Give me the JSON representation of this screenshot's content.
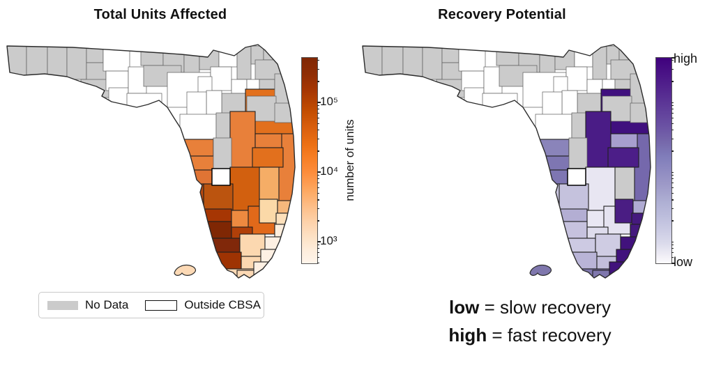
{
  "figure": {
    "background": "#ffffff"
  },
  "panels": {
    "left": {
      "title": "Total Units Affected",
      "colorbar": {
        "label": "number of units",
        "scale": "log",
        "tick_labels": [
          "10⁵",
          "10⁴",
          "10³"
        ],
        "colormap_top": "#7f2704",
        "colormap_bottom": "#fff5eb"
      }
    },
    "right": {
      "title": "Recovery Potential",
      "colorbar": {
        "top_label": "high",
        "bottom_label": "low",
        "colormap_top": "#3f007d",
        "colormap_bottom": "#fcfbfd"
      }
    }
  },
  "legend": {
    "items": [
      {
        "label": "No Data",
        "swatch_color": "#cbcbcb",
        "swatch_border": "none"
      },
      {
        "label": "Outside CBSA",
        "swatch_color": "#ffffff",
        "swatch_border": "#111111"
      }
    ]
  },
  "caption": {
    "line1": {
      "term": "low",
      "rest": " = slow recovery"
    },
    "line2": {
      "term": "high",
      "rest": " = fast recovery"
    }
  },
  "chart_data": {
    "type": "heatmap",
    "subtype": "choropleth",
    "geography": "Florida counties",
    "maps": [
      {
        "title": "Total Units Affected",
        "colormap": "Oranges (darker = more units)",
        "scale": "log",
        "colorbar_label": "number of units",
        "colorbar_ticks": [
          "10⁵",
          "10⁴",
          "10³"
        ],
        "value_key": "units"
      },
      {
        "title": "Recovery Potential",
        "colormap": "Purples (darker = higher potential)",
        "scale": "low to high",
        "colorbar_ticks": [
          "high",
          "low"
        ],
        "value_key": "recovery"
      }
    ],
    "special_values": {
      "no_data": "#cbcbcb",
      "outside_cbsa": "#ffffff"
    },
    "regions": [
      {
        "id": "escambia",
        "units": "#cbcbcb",
        "recovery": "#cbcbcb"
      },
      {
        "id": "santarosa",
        "units": "#cbcbcb",
        "recovery": "#cbcbcb"
      },
      {
        "id": "okaloosa",
        "units": "#cbcbcb",
        "recovery": "#cbcbcb"
      },
      {
        "id": "walton",
        "units": "#cbcbcb",
        "recovery": "#cbcbcb"
      },
      {
        "id": "holmes",
        "units": "#cbcbcb",
        "recovery": "#cbcbcb"
      },
      {
        "id": "washington",
        "units": "#cbcbcb",
        "recovery": "#cbcbcb"
      },
      {
        "id": "bay",
        "units": "#cbcbcb",
        "recovery": "#cbcbcb"
      },
      {
        "id": "jackson",
        "units": "#ffffff",
        "recovery": "#ffffff"
      },
      {
        "id": "calhoun",
        "units": "#ffffff",
        "recovery": "#ffffff"
      },
      {
        "id": "gulf",
        "units": "#ffffff",
        "recovery": "#ffffff"
      },
      {
        "id": "liberty",
        "units": "#ffffff",
        "recovery": "#ffffff"
      },
      {
        "id": "franklin",
        "units": "#ffffff",
        "recovery": "#ffffff"
      },
      {
        "id": "gadsden",
        "units": "#cbcbcb",
        "recovery": "#cbcbcb"
      },
      {
        "id": "leon",
        "units": "#cbcbcb",
        "recovery": "#cbcbcb"
      },
      {
        "id": "wakulla",
        "units": "#cbcbcb",
        "recovery": "#cbcbcb"
      },
      {
        "id": "jefferson",
        "units": "#cbcbcb",
        "recovery": "#cbcbcb"
      },
      {
        "id": "madison",
        "units": "#cbcbcb",
        "recovery": "#cbcbcb"
      },
      {
        "id": "taylor",
        "units": "#ffffff",
        "recovery": "#ffffff"
      },
      {
        "id": "hamilton",
        "units": "#ffffff",
        "recovery": "#ffffff"
      },
      {
        "id": "suwannee",
        "units": "#ffffff",
        "recovery": "#ffffff"
      },
      {
        "id": "lafayette",
        "units": "#ffffff",
        "recovery": "#ffffff"
      },
      {
        "id": "columbia",
        "units": "#cbcbcb",
        "recovery": "#cbcbcb"
      },
      {
        "id": "baker",
        "units": "#cbcbcb",
        "recovery": "#cbcbcb"
      },
      {
        "id": "nassau",
        "units": "#cbcbcb",
        "recovery": "#cbcbcb"
      },
      {
        "id": "duval",
        "units": "#cbcbcb",
        "recovery": "#cbcbcb"
      },
      {
        "id": "union",
        "units": "#ffffff",
        "recovery": "#ffffff"
      },
      {
        "id": "bradford",
        "units": "#ffffff",
        "recovery": "#ffffff"
      },
      {
        "id": "clay",
        "units": "#cbcbcb",
        "recovery": "#cbcbcb"
      },
      {
        "id": "alachua",
        "units": "#cbcbcb",
        "recovery": "#cbcbcb"
      },
      {
        "id": "gilchrist",
        "units": "#ffffff",
        "recovery": "#ffffff"
      },
      {
        "id": "dixie",
        "units": "#ffffff",
        "recovery": "#ffffff"
      },
      {
        "id": "levy",
        "units": "#ffffff",
        "recovery": "#ffffff"
      },
      {
        "id": "marion",
        "units": "#cbcbcb",
        "recovery": "#cbcbcb"
      },
      {
        "id": "citrus",
        "units": "#e8803a",
        "recovery": "#8a84ba"
      },
      {
        "id": "hernando",
        "units": "#e8803a",
        "recovery": "#7e76b2"
      },
      {
        "id": "pasco",
        "units": "#e07434",
        "recovery": "#7e76b2"
      },
      {
        "id": "brevard",
        "units": "#e8803a",
        "recovery": "#7568ac"
      },
      {
        "id": "volusia",
        "units": "#e2701d",
        "recovery": "#40107e"
      },
      {
        "id": "stjohns",
        "units": "#cbcbcb",
        "recovery": "#cbcbcb"
      },
      {
        "id": "putnam",
        "units": "#cbcbcb",
        "recovery": "#cbcbcb"
      },
      {
        "id": "flagler",
        "units": "#cbcbcb",
        "recovery": "#cbcbcb"
      },
      {
        "id": "lake",
        "units": "#e8803a",
        "recovery": "#4a1c86"
      },
      {
        "id": "seminole",
        "units": "#e8803a",
        "recovery": "#a79fce"
      },
      {
        "id": "orangeco",
        "units": "#e2701d",
        "recovery": "#4c1e88"
      },
      {
        "id": "sumter",
        "units": "#cbcbcb",
        "recovery": "#cbcbcb"
      },
      {
        "id": "polk",
        "units": "#d2600f",
        "recovery": "#e8e6f2"
      },
      {
        "id": "osceola",
        "units": "#f5ad66",
        "recovery": "#cbcbcb"
      },
      {
        "id": "hillsborough",
        "units": "#bb540f",
        "recovery": "#c5c2dd"
      },
      {
        "id": "pinellas",
        "units": "#b84a10",
        "recovery": "#c9c6e0"
      },
      {
        "id": "whitebox",
        "units": "#ffffff",
        "recovery": "#ffffff"
      },
      {
        "id": "manatee",
        "units": "#a63603",
        "recovery": "#b3aed3"
      },
      {
        "id": "hardee",
        "units": "#ed8a40",
        "recovery": "#e9e7f3"
      },
      {
        "id": "highlands",
        "units": "#e1691a",
        "recovery": "#e5e3f0"
      },
      {
        "id": "okeechobee",
        "units": "#fbd9a8",
        "recovery": "#4a1d83"
      },
      {
        "id": "sarasota",
        "units": "#7f2704",
        "recovery": "#c6c2de"
      },
      {
        "id": "desoto",
        "units": "#b04009",
        "recovery": "#dedcec"
      },
      {
        "id": "charlotte",
        "units": "#80280a",
        "recovery": "#cdcae3"
      },
      {
        "id": "glades",
        "units": "#fcd8b0",
        "recovery": "#cfcce3"
      },
      {
        "id": "lee",
        "units": "#9e3303",
        "recovery": "#b9b4d7"
      },
      {
        "id": "hendry",
        "units": "#fcd8b0",
        "recovery": "#c2bedb"
      },
      {
        "id": "collier",
        "units": "#fcd9b5",
        "recovery": "#7f77ad"
      },
      {
        "id": "monroe",
        "units": "#fcd9b5",
        "recovery": "#7f77ad"
      },
      {
        "id": "indianriver",
        "units": "#f6b87c",
        "recovery": "#b0abd3"
      },
      {
        "id": "stlucie",
        "units": "#fde0bb",
        "recovery": "#45197e"
      },
      {
        "id": "martin",
        "units": "#fdeedd",
        "recovery": "#45197e"
      },
      {
        "id": "palmbeach",
        "units": "#fdf0e3",
        "recovery": "#41127c"
      },
      {
        "id": "broward",
        "units": "#fdf0e3",
        "recovery": "#41127c"
      },
      {
        "id": "miamidade",
        "units": "#fdf0e3",
        "recovery": "#41127c"
      },
      {
        "id": "keys",
        "units": "#fcd9b5",
        "recovery": "#7f77ad"
      }
    ]
  }
}
